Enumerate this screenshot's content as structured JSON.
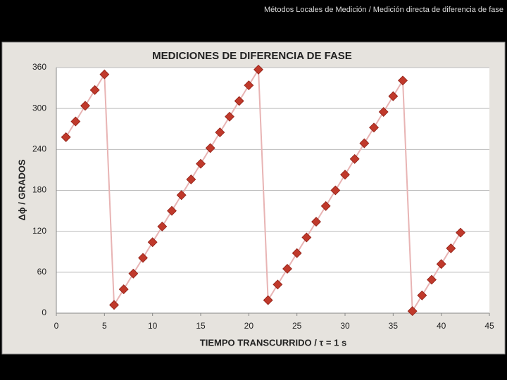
{
  "header": {
    "text": "Métodos Locales de Medición / Medición directa de diferencia de fase"
  },
  "chart_data": {
    "type": "line",
    "title": "MEDICIONES DE DIFERENCIA DE FASE",
    "xlabel": "TIEMPO TRANSCURRIDO / τ = 1 s",
    "ylabel": "Δϕ / GRADOS",
    "x": [
      1,
      2,
      3,
      4,
      5,
      6,
      7,
      8,
      9,
      10,
      11,
      12,
      13,
      14,
      15,
      16,
      17,
      18,
      19,
      20,
      21,
      22,
      23,
      24,
      25,
      26,
      27,
      28,
      29,
      30,
      31,
      32,
      33,
      34,
      35,
      36,
      37,
      38,
      39,
      40,
      41,
      42
    ],
    "series": [
      {
        "color": "#c0392b",
        "line_color": "#e8b4b4",
        "values": [
          258,
          281,
          304,
          327,
          350,
          12,
          35,
          58,
          81,
          104,
          127,
          150,
          173,
          196,
          219,
          242,
          265,
          288,
          311,
          334,
          357,
          19,
          42,
          65,
          88,
          111,
          134,
          157,
          180,
          203,
          226,
          249,
          272,
          295,
          318,
          341,
          3,
          26,
          49,
          72,
          95,
          118
        ]
      }
    ],
    "xlim": [
      0,
      45
    ],
    "xticks": [
      0,
      5,
      10,
      15,
      20,
      25,
      30,
      35,
      40,
      45
    ],
    "ylim": [
      0,
      360
    ],
    "yticks": [
      0,
      60,
      120,
      180,
      240,
      300,
      360
    ],
    "grid": true
  }
}
